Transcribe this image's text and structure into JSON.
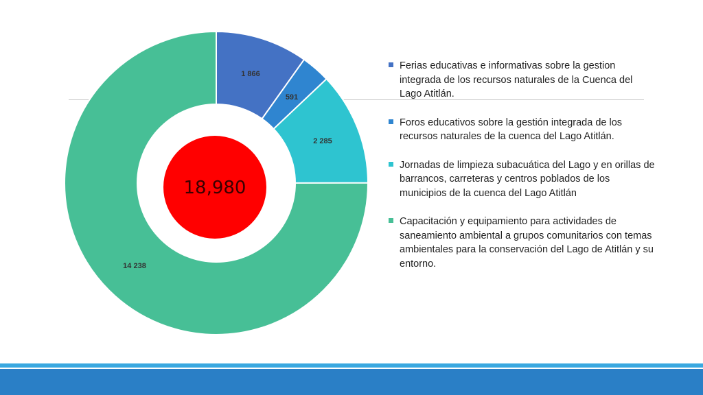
{
  "chart_data": {
    "type": "pie",
    "donut": true,
    "total_label": "18,980",
    "slices": [
      {
        "name": "Ferias educativas e informativas sobre la gestion integrada de los recursos naturales de la Cuenca del Lago Atitlán.",
        "value": 1866,
        "label": "1 866",
        "color": "#4472c4"
      },
      {
        "name": "Foros educativos sobre la gestión integrada de los recursos naturales de la cuenca del Lago Atitlán.",
        "value": 591,
        "label": "591",
        "color": "#2f85d0"
      },
      {
        "name": "Jornadas de limpieza subacuática del Lago y en orillas de barrancos, carreteras y centros poblados de los municipios de la cuenca del Lago Atitlán",
        "value": 2285,
        "label": "2 285",
        "color": "#2ec4d0"
      },
      {
        "name": "Capacitación y equipamiento para actividades de saneamiento ambiental a grupos comunitarios con temas ambientales para la conservación del Lago de Atitlán y su entorno.",
        "value": 14238,
        "label": "14 238",
        "color": "#47bf96"
      }
    ],
    "center_color": "#ff0000",
    "legend_position": "right"
  }
}
